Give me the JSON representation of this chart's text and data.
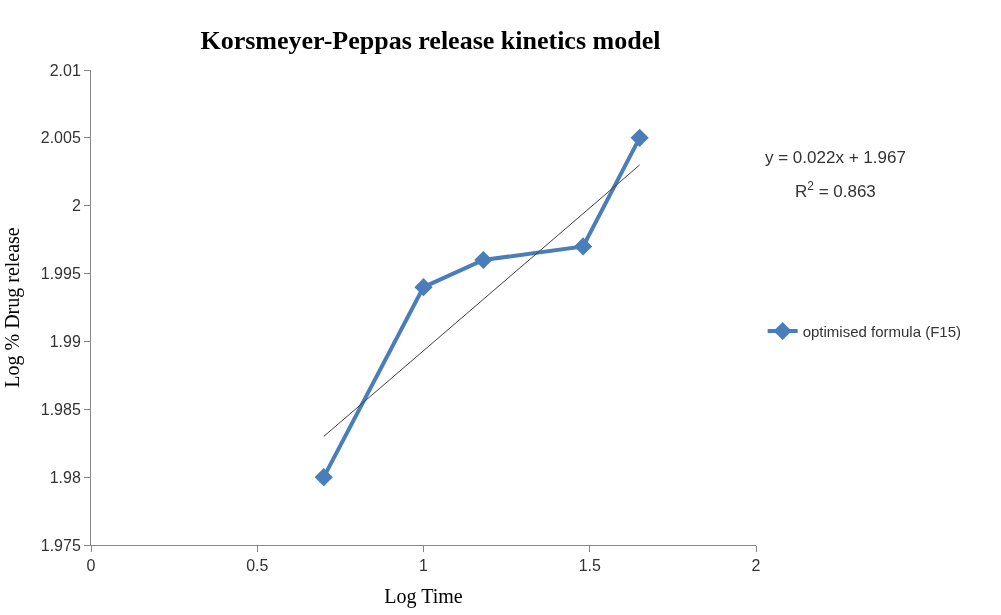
{
  "chart_data": {
    "type": "line",
    "title": "Korsmeyer-Peppas release kinetics model",
    "xlabel": "Log Time",
    "ylabel": "Log % Drug release",
    "x": [
      0.7,
      1.0,
      1.18,
      1.48,
      1.65
    ],
    "series": [
      {
        "name": "optimised formula (F15)",
        "color": "#4a7ebb",
        "values": [
          1.98,
          1.994,
          1.996,
          1.997,
          2.005
        ],
        "marker": "diamond"
      },
      {
        "type": "line",
        "color": "#404040",
        "x": [
          0.7,
          1.65
        ],
        "values": [
          1.983,
          2.003
        ],
        "marker": "none"
      }
    ],
    "xlim": [
      0,
      2
    ],
    "xticks": [
      0,
      0.5,
      1,
      1.5,
      2
    ],
    "ylim": [
      1.975,
      2.01
    ],
    "yticks": [
      1.975,
      1.98,
      1.985,
      1.99,
      1.995,
      2,
      2.005,
      2.01
    ],
    "annotations": [
      "y = 0.022x + 1.967",
      "R$^{2}$ = 0.863"
    ],
    "legend": "right"
  }
}
